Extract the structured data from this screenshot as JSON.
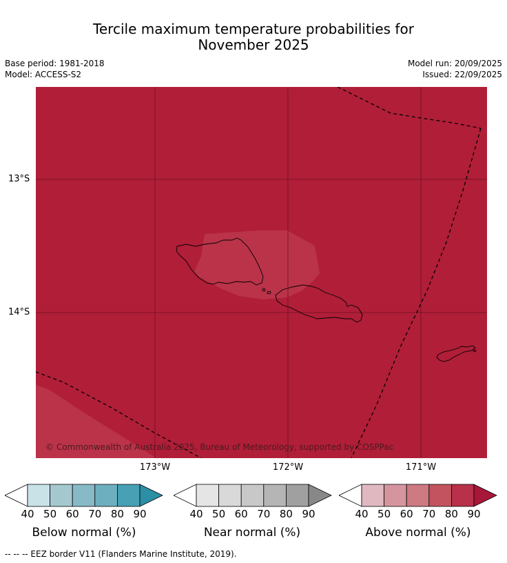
{
  "title": {
    "line1": "Tercile maximum temperature probabilities for",
    "line2": "November 2025"
  },
  "meta": {
    "base_period": "Base period: 1981-2018",
    "model": "Model: ACCESS-S2",
    "model_run": "Model run: 20/09/2025",
    "issued": "Issued: 22/09/2025"
  },
  "map": {
    "lat_labels": [
      "13°S",
      "14°S"
    ],
    "lon_labels": [
      "173°W",
      "172°W",
      "171°W"
    ],
    "copyright": "© Commonwealth of Australia 2025, Bureau of Meteorology, supported by COSPPac",
    "colors": {
      "background": "#b01e38",
      "light_patch": "#ba3349",
      "grid": "#6e1020",
      "eez": "#000000"
    },
    "shaded_category": "Above normal",
    "shaded_percent_range": "80-90",
    "patch_percent_range": "70-80"
  },
  "legends": [
    {
      "name": "below",
      "label": "Below normal (%)",
      "ticks": [
        "40",
        "50",
        "60",
        "70",
        "80",
        "90"
      ],
      "colors": [
        "#ffffff",
        "#c8e2e8",
        "#a5c8cf",
        "#88b9c6",
        "#6dafbf",
        "#47a0b3",
        "#2b8fa5"
      ]
    },
    {
      "name": "near",
      "label": "Near normal (%)",
      "ticks": [
        "40",
        "50",
        "60",
        "70",
        "80",
        "90"
      ],
      "colors": [
        "#ffffff",
        "#e5e5e5",
        "#d9d9d9",
        "#c8c8c8",
        "#b5b5b5",
        "#a0a0a0",
        "#888888"
      ]
    },
    {
      "name": "above",
      "label": "Above normal (%)",
      "ticks": [
        "40",
        "50",
        "60",
        "70",
        "80",
        "90"
      ],
      "colors": [
        "#ffffff",
        "#e0b8bf",
        "#d5959f",
        "#cd7a83",
        "#c3545f",
        "#b8304a",
        "#a8163a"
      ]
    }
  ],
  "footnote": "--  --  -- EEZ border V11 (Flanders Marine Institute, 2019)."
}
